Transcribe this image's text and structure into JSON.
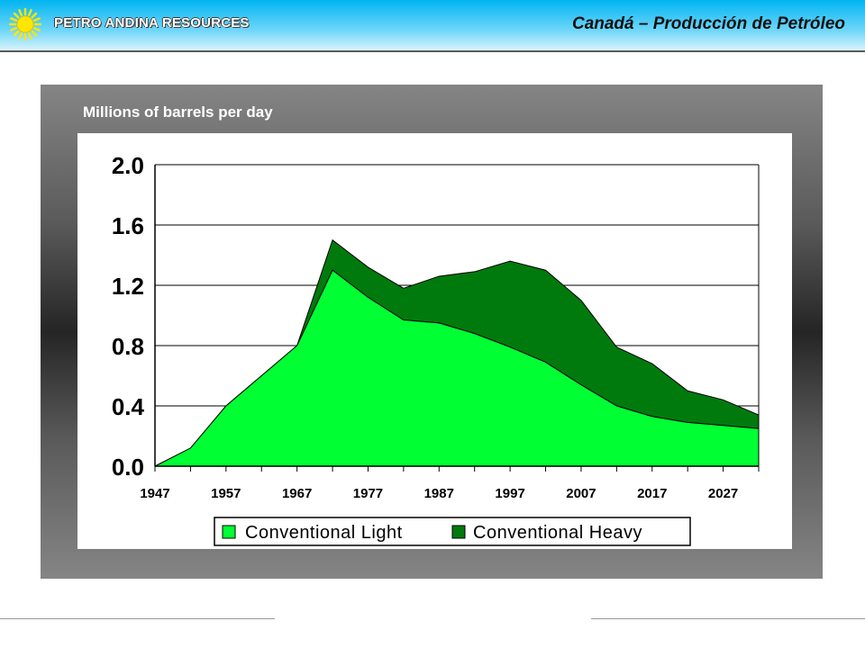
{
  "header": {
    "brand": "PETRO ANDINA RESOURCES",
    "title": "Canadá – Producción de Petróleo"
  },
  "colors": {
    "light": "#00ff33",
    "heavy": "#007a0d",
    "grid": "#000000"
  },
  "chart_data": {
    "type": "area",
    "stacked": true,
    "title": "Millions of barrels per day",
    "xlabel": "",
    "ylabel": "",
    "x": [
      1947,
      1952,
      1957,
      1962,
      1967,
      1972,
      1977,
      1982,
      1987,
      1992,
      1997,
      2002,
      2007,
      2012,
      2017,
      2022,
      2027,
      2032
    ],
    "x_ticks": [
      "1947",
      "1957",
      "1967",
      "1977",
      "1987",
      "1997",
      "2007",
      "2017",
      "2027"
    ],
    "y_ticks": [
      "0.0",
      "0.4",
      "0.8",
      "1.2",
      "1.6",
      "2.0"
    ],
    "ylim": [
      0,
      2.0
    ],
    "xlim": [
      1947,
      2032
    ],
    "grid": true,
    "legend_position": "bottom",
    "series": [
      {
        "name": "Conventional Light",
        "color": "#00ff33",
        "values": [
          0.0,
          0.12,
          0.4,
          0.6,
          0.8,
          1.3,
          1.12,
          0.97,
          0.95,
          0.88,
          0.79,
          0.69,
          0.54,
          0.4,
          0.33,
          0.29,
          0.27,
          0.25
        ]
      },
      {
        "name": "Conventional Heavy",
        "color": "#007a0d",
        "values": [
          0.0,
          0.0,
          0.0,
          0.0,
          0.0,
          0.2,
          0.2,
          0.21,
          0.31,
          0.41,
          0.57,
          0.61,
          0.56,
          0.39,
          0.35,
          0.21,
          0.17,
          0.09
        ]
      }
    ]
  }
}
